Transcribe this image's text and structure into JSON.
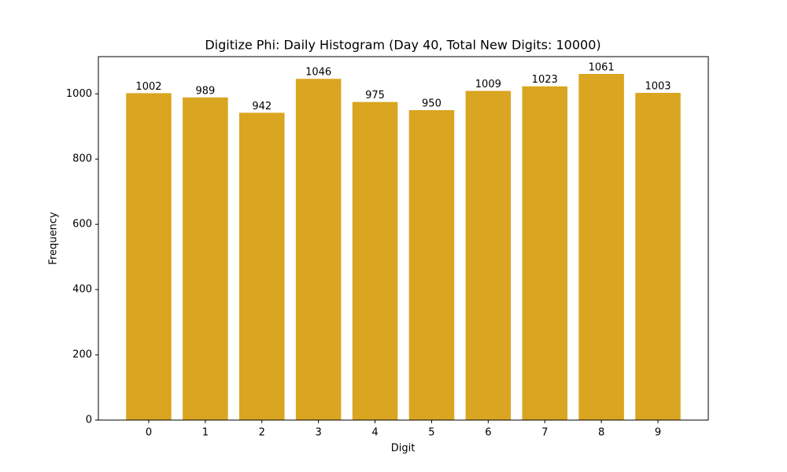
{
  "chart_data": {
    "type": "bar",
    "title": "Digitize Phi: Daily Histogram (Day 40, Total New Digits: 10000)",
    "xlabel": "Digit",
    "ylabel": "Frequency",
    "x": [
      0,
      1,
      2,
      3,
      4,
      5,
      6,
      7,
      8,
      9
    ],
    "values": [
      1002,
      989,
      942,
      1046,
      975,
      950,
      1009,
      1023,
      1061,
      1003
    ],
    "color": "#daa520",
    "xlim": [
      -0.89,
      9.89
    ],
    "xticks": [
      0,
      1,
      2,
      3,
      4,
      5,
      6,
      7,
      8,
      9
    ],
    "ylim": [
      0,
      1114
    ],
    "yticks": [
      0,
      200,
      400,
      600,
      800,
      1000
    ],
    "grid": false
  }
}
